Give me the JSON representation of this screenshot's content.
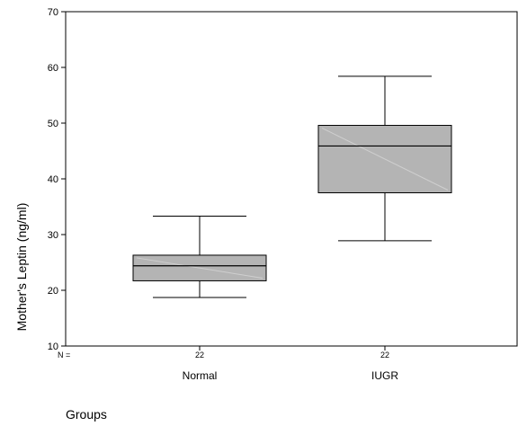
{
  "chart_data": {
    "type": "boxplot",
    "title": "",
    "xlabel": "Groups",
    "ylabel": "Mother's Leptin (ng/ml)",
    "ylim": [
      10,
      70
    ],
    "yticks": [
      10,
      20,
      30,
      40,
      50,
      60,
      70
    ],
    "n_prefix": "N =",
    "grid": false,
    "categories": [
      "Normal",
      "IUGR"
    ],
    "counts": [
      "22",
      "22"
    ],
    "boxes": [
      {
        "category": "Normal",
        "min": 18.7,
        "q1": 21.7,
        "median": 24.4,
        "q3": 26.3,
        "max": 33.3
      },
      {
        "category": "IUGR",
        "min": 28.9,
        "q1": 37.5,
        "median": 45.9,
        "q3": 49.6,
        "max": 58.4
      }
    ],
    "box_color": "#b4b4b4"
  }
}
